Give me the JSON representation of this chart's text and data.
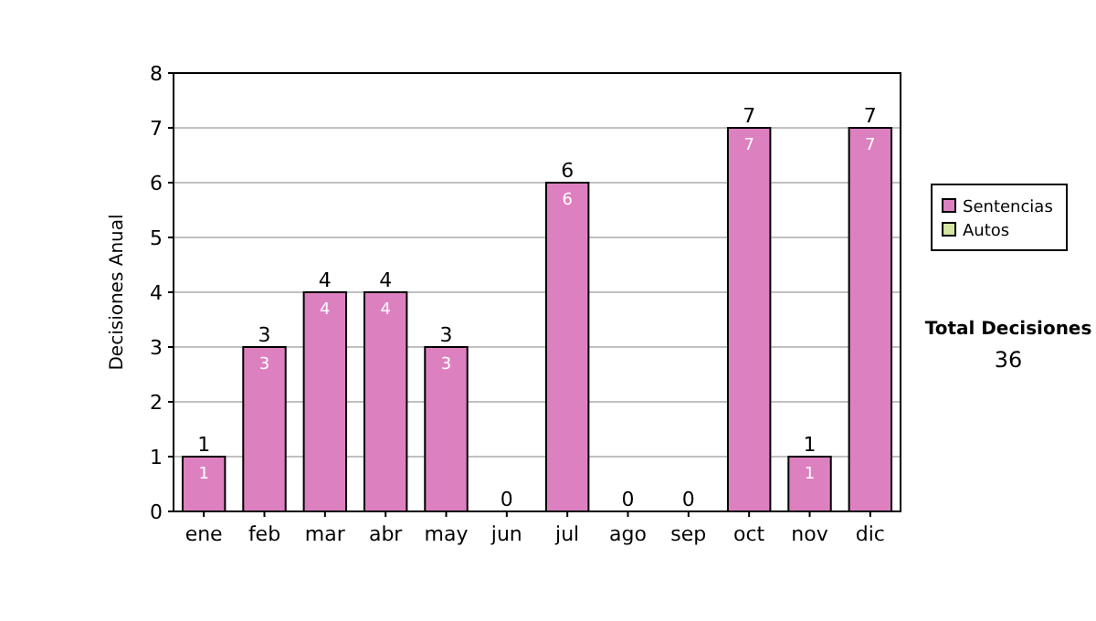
{
  "chart_data": {
    "type": "bar",
    "ylabel": "Decisiones Anual",
    "categories": [
      "ene",
      "feb",
      "mar",
      "abr",
      "may",
      "jun",
      "jul",
      "ago",
      "sep",
      "oct",
      "nov",
      "dic"
    ],
    "stacked": true,
    "series": [
      {
        "name": "Sentencias",
        "color": "#dd80c0",
        "values": [
          1,
          3,
          4,
          4,
          3,
          0,
          6,
          0,
          0,
          7,
          1,
          7
        ],
        "value_labels": [
          "1",
          "3",
          "4",
          "4",
          "3",
          null,
          "6",
          null,
          null,
          "7",
          "1",
          "7"
        ]
      },
      {
        "name": "Autos",
        "color": "#d4e6a0",
        "values": [
          0,
          0,
          0,
          0,
          0,
          0,
          0,
          0,
          0,
          0,
          0,
          0
        ]
      }
    ],
    "totals": [
      "1",
      "3",
      "4",
      "4",
      "3",
      "0",
      "6",
      "0",
      "0",
      "7",
      "1",
      "7"
    ],
    "ylim": [
      0,
      8
    ],
    "yticks": [
      0,
      1,
      2,
      3,
      4,
      5,
      6,
      7,
      8
    ],
    "grid": "y",
    "legend": "right",
    "annotations": [
      "Total Decisiones",
      "36"
    ]
  }
}
